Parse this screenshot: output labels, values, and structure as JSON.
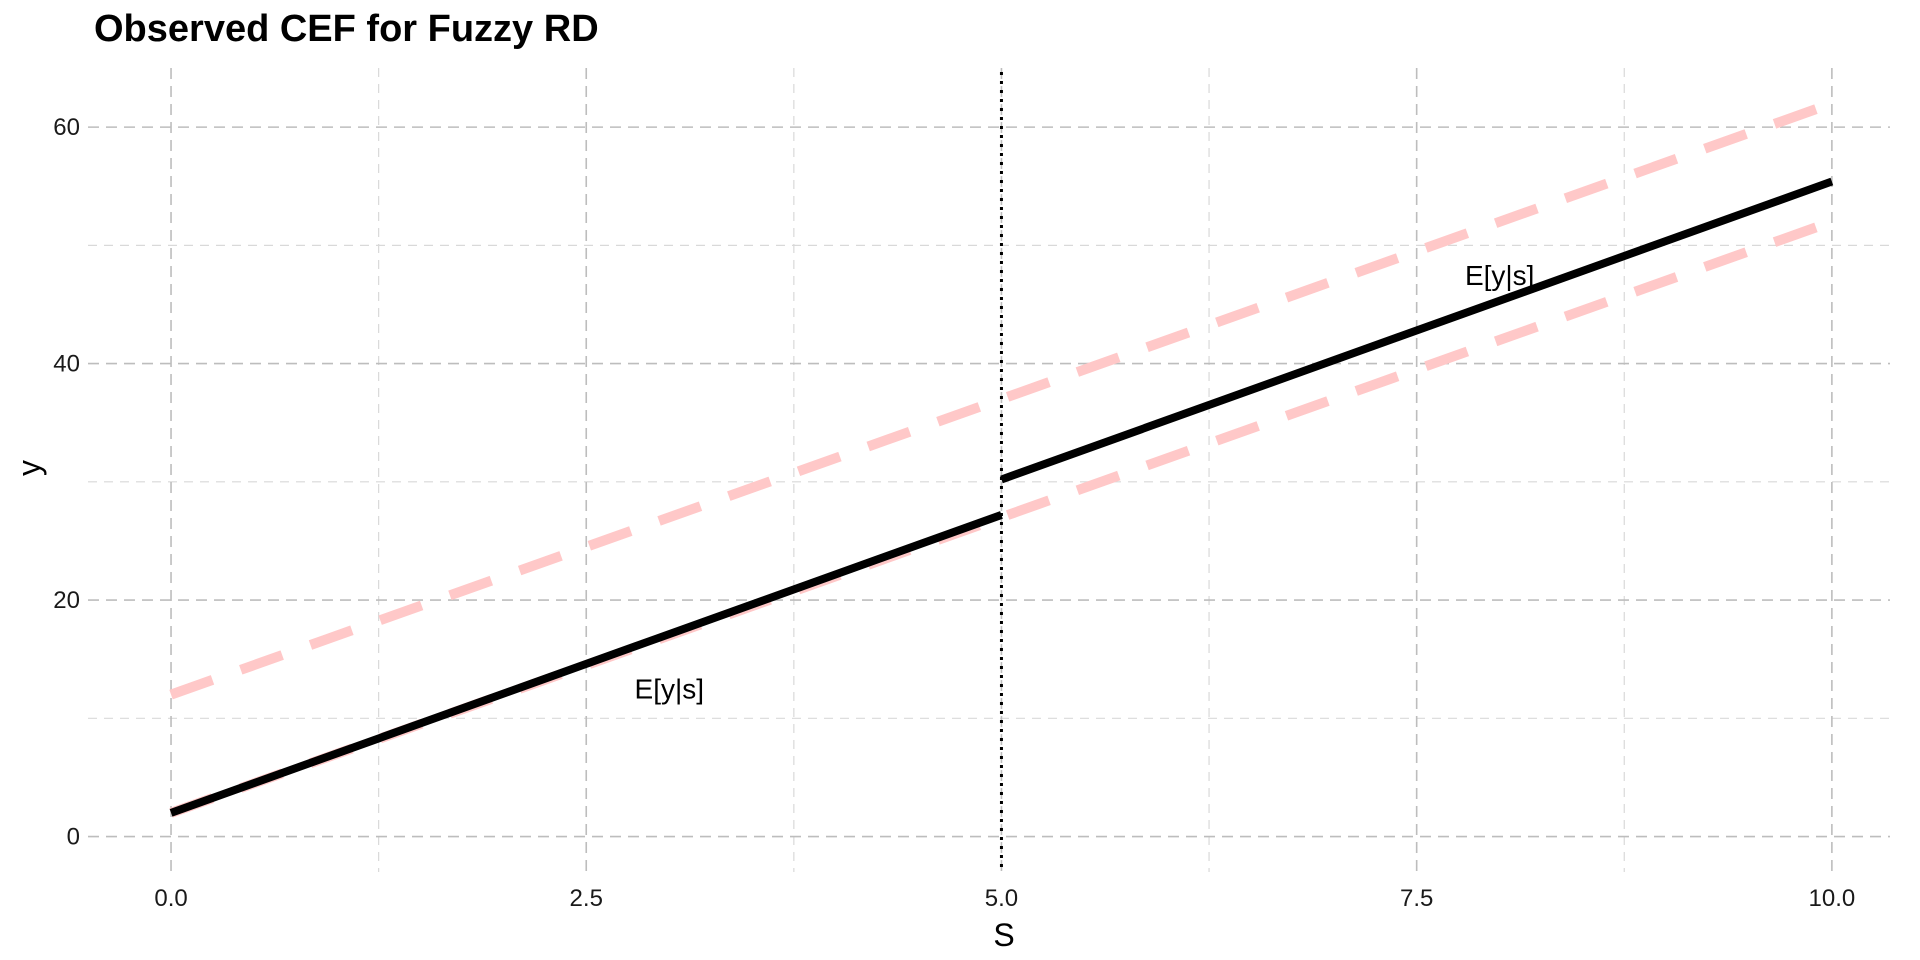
{
  "chart_data": {
    "type": "line",
    "title": "Observed CEF for Fuzzy RD",
    "xlabel": "S",
    "ylabel": "y",
    "xlim": [
      -0.5,
      10.35
    ],
    "ylim": [
      -3.0,
      65.0
    ],
    "x_ticks": [
      0,
      2.5,
      5,
      7.5,
      10
    ],
    "x_tick_labels": [
      "0.0",
      "2.5",
      "5.0",
      "7.5",
      "10.0"
    ],
    "y_ticks": [
      0,
      20,
      40,
      60
    ],
    "y_tick_labels": [
      "0",
      "20",
      "40",
      "60"
    ],
    "grid": true,
    "legend": "none",
    "cutoff": 5,
    "series": [
      {
        "color": "#FFC8C8",
        "style": "dashed",
        "x": [
          0,
          10
        ],
        "y": [
          12,
          62
        ]
      },
      {
        "color": "#FFC8C8",
        "style": "dashed",
        "x": [
          0,
          10
        ],
        "y": [
          2,
          52
        ]
      },
      {
        "color": "#000000",
        "style": "solid",
        "x": [
          0,
          5
        ],
        "y": [
          2,
          27.2
        ]
      },
      {
        "color": "#000000",
        "style": "solid",
        "x": [
          5,
          10
        ],
        "y": [
          30.2,
          55.4
        ]
      }
    ],
    "annotations": [
      {
        "text": "E[y|s]",
        "x": 3.0,
        "y": 12.5
      },
      {
        "text": "E[y|s]",
        "x": 8.0,
        "y": 47.5
      }
    ]
  }
}
